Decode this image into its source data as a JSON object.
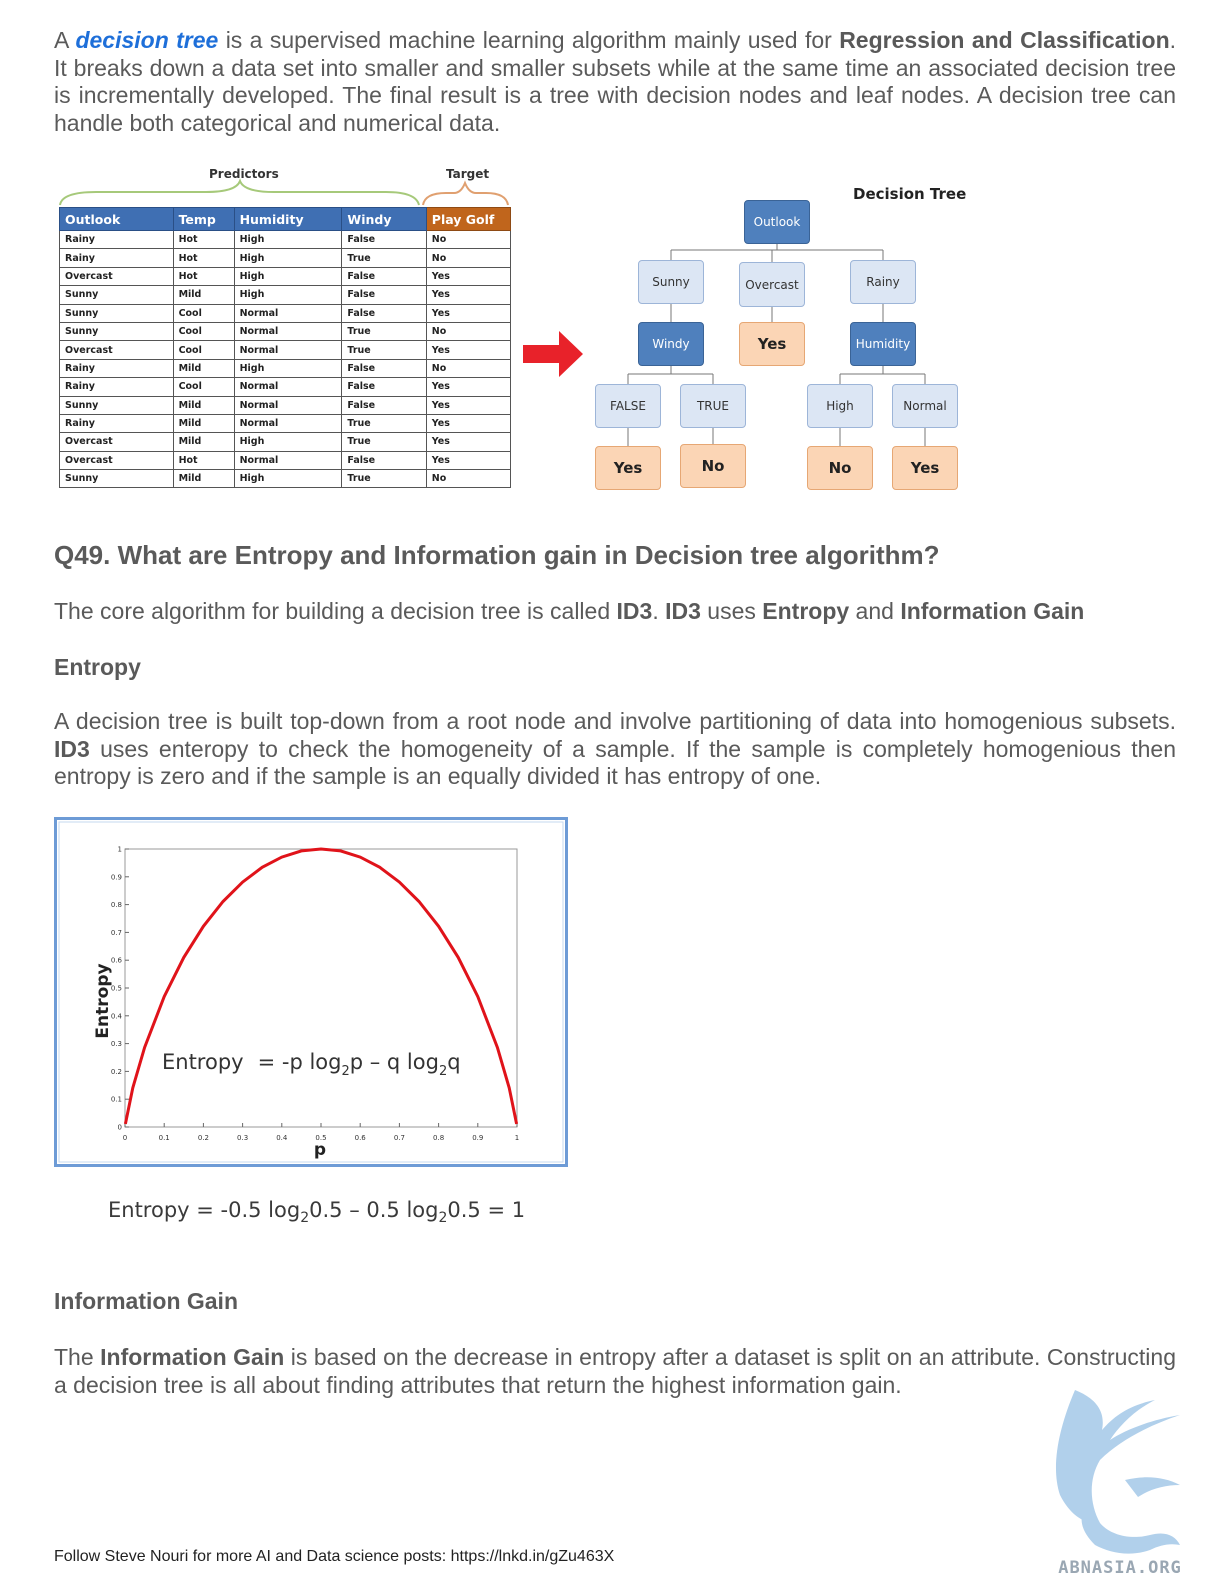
{
  "intro": {
    "p1_a": "A ",
    "link": "decision tree",
    "p1_b": " is a supervised machine learning algorithm mainly used for ",
    "p1_bold": "Regression and Classification",
    "p1_c": ". It breaks down a data set into smaller and smaller subsets while at the same time an associated decision tree is incrementally developed. The final result is a tree with decision nodes and leaf nodes. A decision tree can handle both categorical and numerical data."
  },
  "table_figure": {
    "predictors_label": "Predictors",
    "target_label": "Target",
    "headers": [
      "Outlook",
      "Temp",
      "Humidity",
      "Windy",
      "Play Golf"
    ],
    "rows": [
      [
        "Rainy",
        "Hot",
        "High",
        "False",
        "No"
      ],
      [
        "Rainy",
        "Hot",
        "High",
        "True",
        "No"
      ],
      [
        "Overcast",
        "Hot",
        "High",
        "False",
        "Yes"
      ],
      [
        "Sunny",
        "Mild",
        "High",
        "False",
        "Yes"
      ],
      [
        "Sunny",
        "Cool",
        "Normal",
        "False",
        "Yes"
      ],
      [
        "Sunny",
        "Cool",
        "Normal",
        "True",
        "No"
      ],
      [
        "Overcast",
        "Cool",
        "Normal",
        "True",
        "Yes"
      ],
      [
        "Rainy",
        "Mild",
        "High",
        "False",
        "No"
      ],
      [
        "Rainy",
        "Cool",
        "Normal",
        "False",
        "Yes"
      ],
      [
        "Sunny",
        "Mild",
        "Normal",
        "False",
        "Yes"
      ],
      [
        "Rainy",
        "Mild",
        "Normal",
        "True",
        "Yes"
      ],
      [
        "Overcast",
        "Mild",
        "High",
        "True",
        "Yes"
      ],
      [
        "Overcast",
        "Hot",
        "Normal",
        "False",
        "Yes"
      ],
      [
        "Sunny",
        "Mild",
        "High",
        "True",
        "No"
      ]
    ]
  },
  "tree": {
    "title": "Decision Tree",
    "root": "Outlook",
    "level1": [
      "Sunny",
      "Overcast",
      "Rainy"
    ],
    "overcast_leaf": "Yes",
    "windy": "Windy",
    "humidity": "Humidity",
    "windy_branches": [
      "FALSE",
      "TRUE"
    ],
    "windy_leaves": [
      "Yes",
      "No"
    ],
    "humidity_branches": [
      "High",
      "Normal"
    ],
    "humidity_leaves": [
      "No",
      "Yes"
    ]
  },
  "q49": {
    "heading": "Q49. What are Entropy and Information gain in Decision tree algorithm?",
    "p_a": "The core algorithm for building a decision tree is called ",
    "id3_1": "ID3",
    "p_b": ". ",
    "id3_2": "ID3",
    "p_c": " uses ",
    "entropy_bold": "Entropy",
    "p_d": " and ",
    "ig_bold": "Information Gain"
  },
  "entropy_section": {
    "heading": "Entropy",
    "p_a": "A decision tree is built top-down from a root node and involve partitioning of data into homogenious subsets. ",
    "id3": "ID3",
    "p_b": " uses enteropy to check the homogeneity of a sample. If the sample is completely homogenious then entropy is zero and if the sample is an equally divided it has entropy of one."
  },
  "chart_data": {
    "type": "line",
    "xlabel": "p",
    "ylabel": "Entropy",
    "xlim": [
      0,
      1
    ],
    "ylim": [
      0,
      1
    ],
    "x_ticks": [
      "0",
      "0.1",
      "0.2",
      "0.3",
      "0.4",
      "0.5",
      "0.6",
      "0.7",
      "0.8",
      "0.9",
      "1"
    ],
    "y_ticks": [
      "0",
      "0.1",
      "0.2",
      "0.3",
      "0.4",
      "0.5",
      "0.6",
      "0.7",
      "0.8",
      "0.9",
      "1"
    ],
    "series": [
      {
        "color": "#e0131a",
        "x": [
          0.001,
          0.02,
          0.05,
          0.1,
          0.15,
          0.2,
          0.25,
          0.3,
          0.35,
          0.4,
          0.45,
          0.5,
          0.55,
          0.6,
          0.65,
          0.7,
          0.75,
          0.8,
          0.85,
          0.9,
          0.95,
          0.98,
          0.999
        ],
        "y": [
          0.011,
          0.141,
          0.286,
          0.469,
          0.61,
          0.722,
          0.811,
          0.881,
          0.934,
          0.971,
          0.993,
          1.0,
          0.993,
          0.971,
          0.934,
          0.881,
          0.811,
          0.722,
          0.61,
          0.469,
          0.286,
          0.141,
          0.011
        ]
      }
    ],
    "annotation": {
      "label": "Entropy",
      "eq": "= -p log",
      "sub1": "2",
      "mid": "p – q log",
      "sub2": "2",
      "end": "q"
    },
    "grid": false
  },
  "example": {
    "a": "Entropy = -0.5 log",
    "s1": "2",
    "b": "0.5 – 0.5 log",
    "s2": "2",
    "c": "0.5 = 1"
  },
  "info_gain": {
    "heading": "Information Gain",
    "p_a": "The ",
    "bold": "Information Gain",
    "p_b": " is based on the decrease in entropy after a dataset is split on an attribute. Constructing a decision tree is all about finding attributes that return the highest information gain."
  },
  "footer": "Follow Steve Nouri for more AI and Data science posts: https://lnkd.in/gZu463X",
  "logo_text": "ABNASIA.ORG",
  "colors": {
    "arrow": "#e8222a",
    "curve": "#e0131a",
    "chart_border": "#6d9bd6"
  }
}
